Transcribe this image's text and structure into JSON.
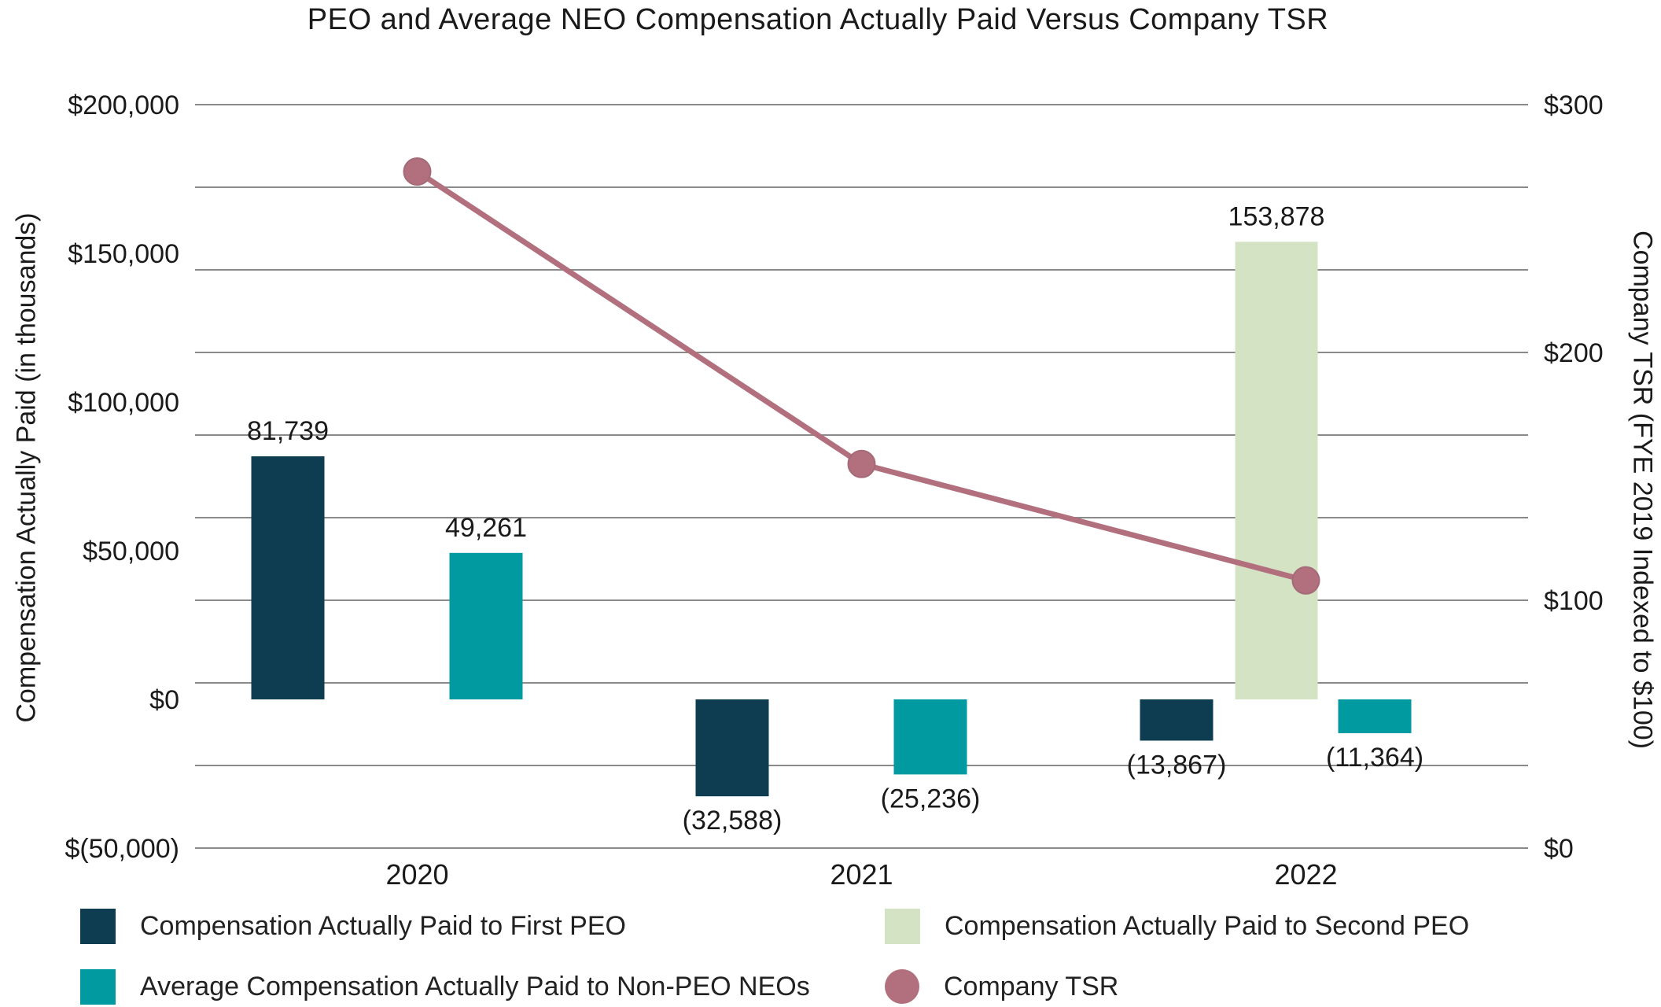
{
  "title": "PEO and Average NEO Compensation Actually Paid Versus Company TSR",
  "left_axis": {
    "title": "Compensation Actually Paid (in thousands)",
    "tick_labels": [
      "$200,000",
      "$150,000",
      "$100,000",
      "$50,000",
      "$0",
      "$(50,000)"
    ],
    "tick_values": [
      200000,
      150000,
      100000,
      50000,
      0,
      -50000
    ],
    "min": -50000,
    "max": 200000
  },
  "right_axis": {
    "title": "Company TSR (FYE 2019 Indexed to $100)",
    "tick_labels": [
      "$300",
      "$200",
      "$100",
      "$0"
    ],
    "tick_values": [
      300,
      200,
      100,
      0
    ],
    "min": 0,
    "max": 300
  },
  "colors": {
    "first_peo": "#0e3c50",
    "second_peo": "#d4e3c3",
    "non_peo_neos": "#009aa0",
    "tsr_line": "#b2707e",
    "gridline": "#8a8a8a",
    "zero_line": "#767676",
    "text": "#1a1a1a"
  },
  "chart_data": {
    "type": "bar+line",
    "categories": [
      "2020",
      "2021",
      "2022"
    ],
    "grid": "horizontal, 10 lines",
    "legend_position": "bottom",
    "series": [
      {
        "name": "Compensation Actually Paid to First PEO",
        "type": "bar",
        "color": "#0e3c50",
        "axis": "left",
        "values": [
          81739,
          -32588,
          -13867
        ],
        "labels": [
          "81,739",
          "(32,588)",
          "(13,867)"
        ]
      },
      {
        "name": "Compensation Actually Paid to Second PEO",
        "type": "bar",
        "color": "#d4e3c3",
        "axis": "left",
        "values": [
          null,
          null,
          153878
        ],
        "labels": [
          null,
          null,
          "153,878"
        ]
      },
      {
        "name": "Average Compensation Actually Paid to Non-PEO NEOs",
        "type": "bar",
        "color": "#009aa0",
        "axis": "left",
        "values": [
          49261,
          -25236,
          -11364
        ],
        "labels": [
          "49,261",
          "(25,236)",
          "(11,364)"
        ]
      },
      {
        "name": "Company TSR",
        "type": "line",
        "color": "#b2707e",
        "axis": "right",
        "values": [
          273,
          155,
          108
        ]
      }
    ],
    "left_ylim": [
      -50000,
      200000
    ],
    "right_ylim": [
      0,
      300
    ],
    "title": "PEO and Average NEO Compensation Actually Paid Versus Company TSR",
    "xlabel": "",
    "ylabel_left": "Compensation Actually Paid (in thousands)",
    "ylabel_right": "Company TSR (FYE 2019 Indexed to $100)"
  },
  "legend": {
    "items": [
      {
        "label": "Compensation Actually Paid to First PEO",
        "marker": "square",
        "color": "#0e3c50"
      },
      {
        "label": "Average Compensation Actually Paid to Non-PEO NEOs",
        "marker": "square",
        "color": "#009aa0"
      },
      {
        "label": "Compensation Actually Paid to Second PEO",
        "marker": "square",
        "color": "#d4e3c3"
      },
      {
        "label": "Company TSR",
        "marker": "circle",
        "color": "#b2707e"
      }
    ]
  }
}
